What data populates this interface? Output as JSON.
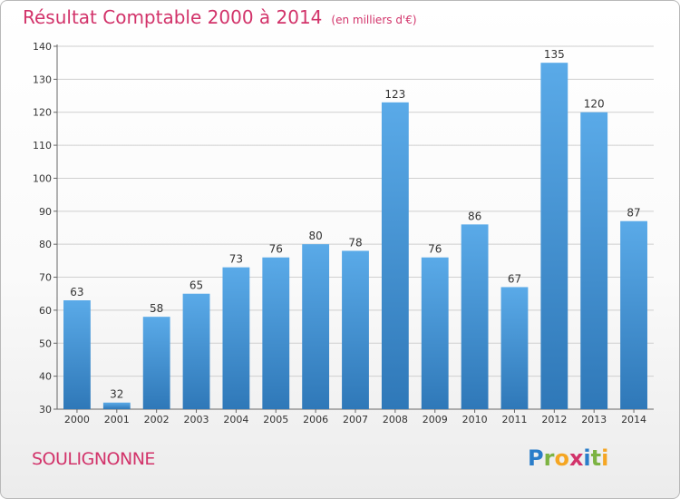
{
  "chart_data": {
    "type": "bar",
    "title": "Résultat Comptable 2000 à 2014",
    "subtitle": "(en milliers d'€)",
    "xlabel": "",
    "ylabel": "",
    "categories": [
      "2000",
      "2001",
      "2002",
      "2003",
      "2004",
      "2005",
      "2006",
      "2007",
      "2008",
      "2009",
      "2010",
      "2011",
      "2012",
      "2013",
      "2014"
    ],
    "values": [
      63,
      32,
      58,
      65,
      73,
      76,
      80,
      78,
      123,
      76,
      86,
      67,
      135,
      120,
      87
    ],
    "ylim": [
      30,
      140
    ],
    "yticks": [
      30,
      40,
      50,
      60,
      70,
      80,
      90,
      100,
      110,
      120,
      130,
      140
    ],
    "grid": true,
    "bar_color": "#4c9be0"
  },
  "footer": {
    "place_name": "SOULIGNONNE",
    "logo_letters": [
      {
        "char": "P",
        "color": "#2a7dc9"
      },
      {
        "char": "r",
        "color": "#7cb342"
      },
      {
        "char": "o",
        "color": "#f5a623"
      },
      {
        "char": "x",
        "color": "#d2336a"
      },
      {
        "char": "i",
        "color": "#2a7dc9"
      },
      {
        "char": "t",
        "color": "#7cb342"
      },
      {
        "char": "i",
        "color": "#f5a623"
      }
    ]
  },
  "colors": {
    "accent": "#d2336a",
    "bar_top": "#5aaae8",
    "bar_bottom": "#2f78b8"
  }
}
